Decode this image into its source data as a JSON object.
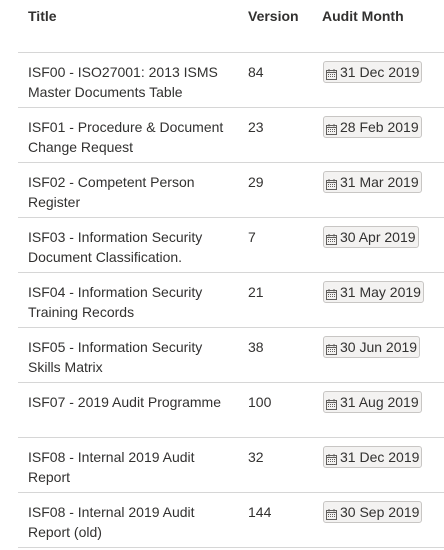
{
  "header": {
    "title": "Title",
    "version": "Version",
    "audit_month": "Audit Month"
  },
  "icons": {
    "date": "calendar-icon"
  },
  "rows": [
    {
      "title": "ISF00 - ISO27001: 2013 ISMS Master Documents Table",
      "version": "84",
      "audit_month": "31 Dec 2019"
    },
    {
      "title": "ISF01 - Procedure & Document Change Request",
      "version": "23",
      "audit_month": "28 Feb 2019"
    },
    {
      "title": "ISF02 - Competent Person Register",
      "version": "29",
      "audit_month": "31 Mar 2019"
    },
    {
      "title": "ISF03 - Information Security Document Classification.",
      "version": "7",
      "audit_month": "30 Apr 2019"
    },
    {
      "title": "ISF04 - Information Security Training Records",
      "version": "21",
      "audit_month": "31 May 2019"
    },
    {
      "title": "ISF05 - Information Security Skills Matrix",
      "version": "38",
      "audit_month": "30 Jun 2019"
    },
    {
      "title": "ISF07 - 2019 Audit Programme",
      "version": "100",
      "audit_month": "31 Aug 2019"
    },
    {
      "title": "ISF08 - Internal 2019 Audit Report",
      "version": "32",
      "audit_month": "31 Dec 2019"
    },
    {
      "title": "ISF08 - Internal 2019 Audit Report (old)",
      "version": "144",
      "audit_month": "30 Sep 2019"
    }
  ]
}
